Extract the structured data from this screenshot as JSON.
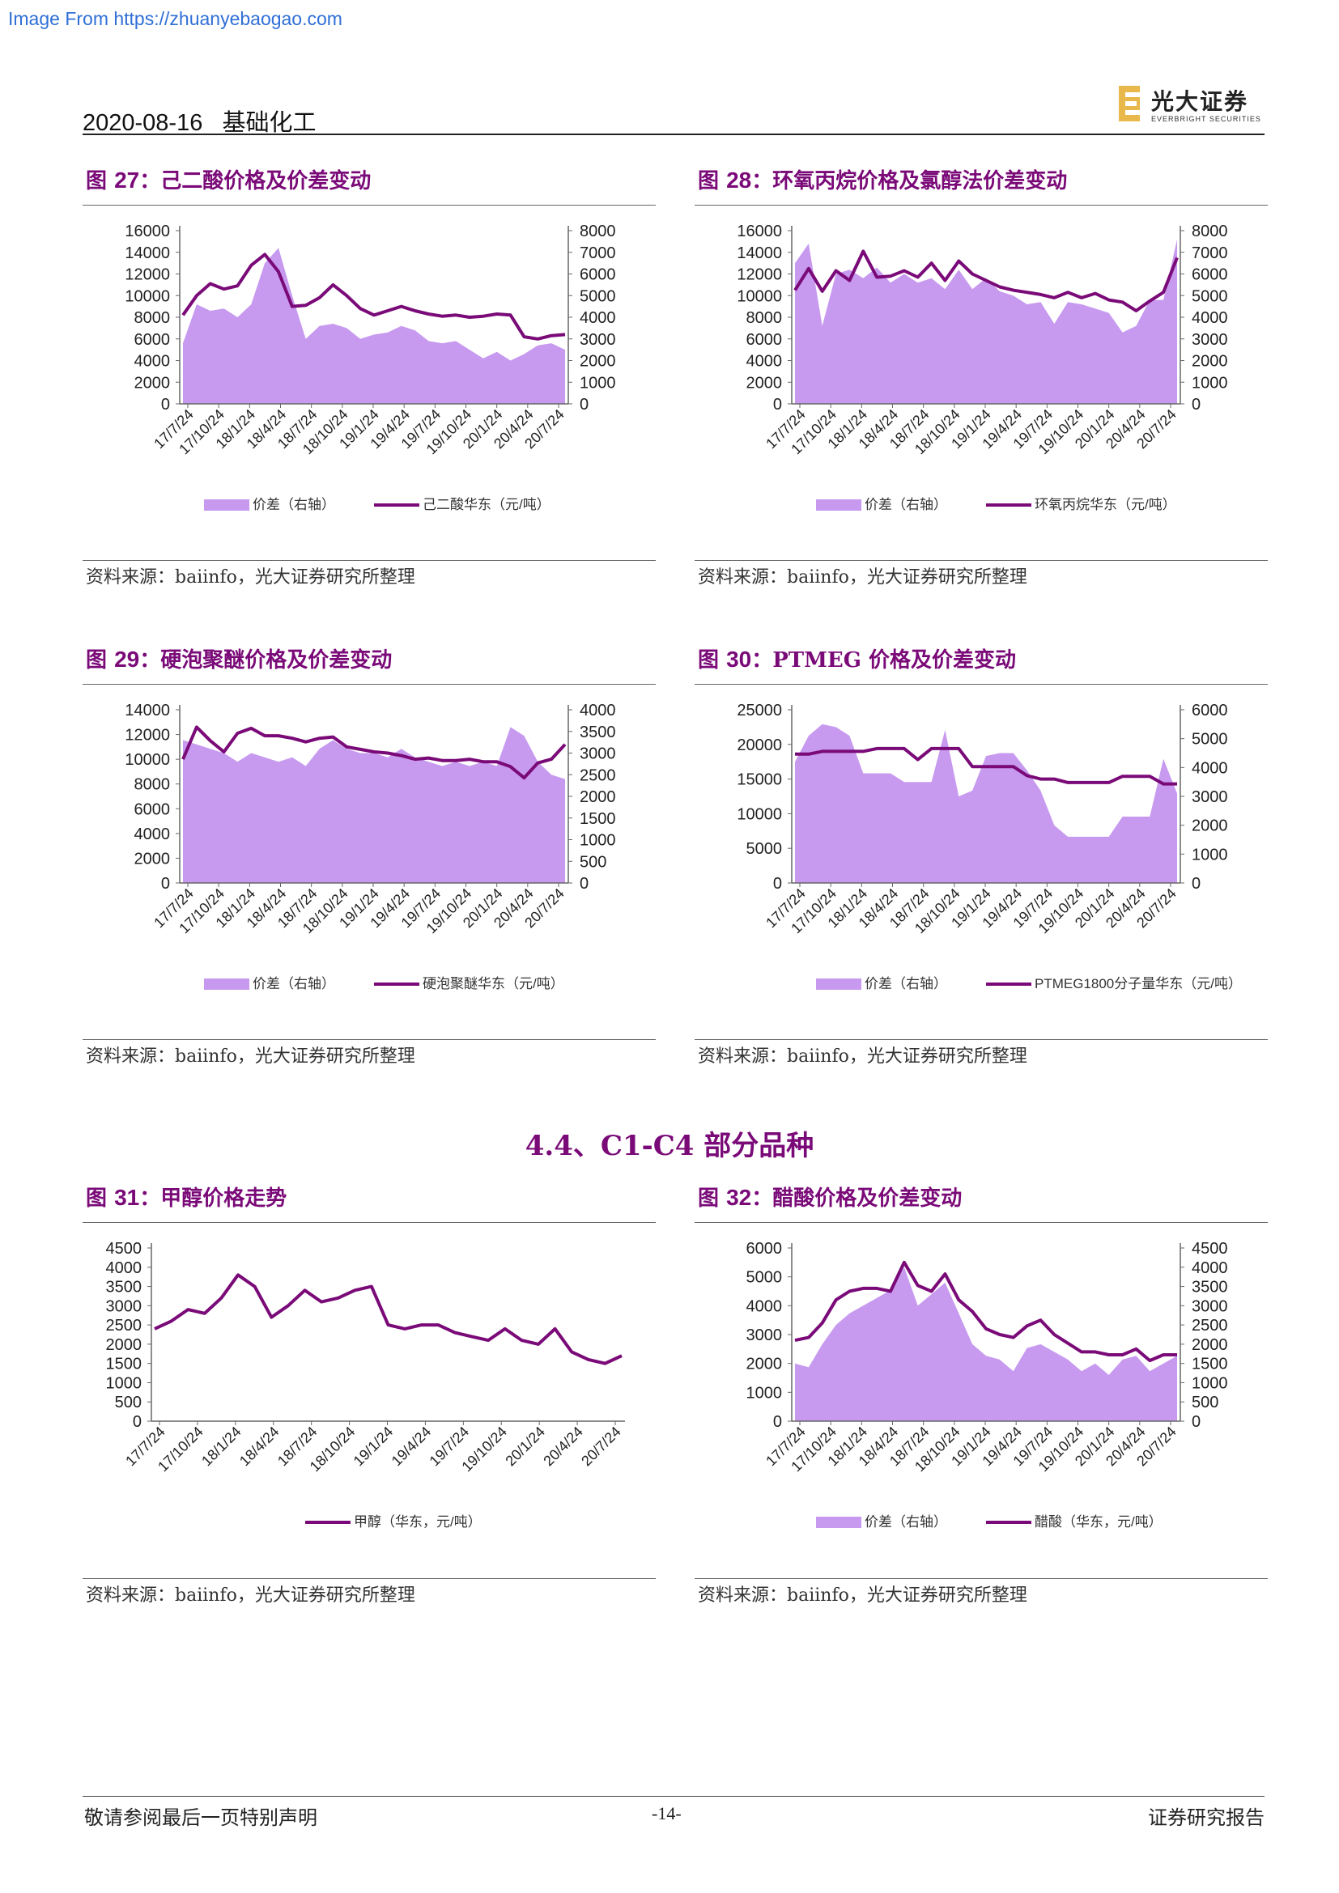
{
  "watermark": "Image From https://zhuanyebaogao.com",
  "header": {
    "date": "2020-08-16",
    "sector": "基础化工",
    "logo_cn": "光大证券",
    "logo_en": "EVERBRIGHT SECURITIES"
  },
  "section_title": "4.4、C1-C4 部分品种",
  "footer": {
    "left": "敬请参阅最后一页特别声明",
    "page": "-14-",
    "right": "证券研究报告"
  },
  "colors": {
    "accent": "#7a0a78",
    "area": "#c79af0"
  },
  "figures": [
    {
      "label": "图",
      "num": "27",
      "title": "己二酸价格及价差变动",
      "source": "资料来源：baiinfo，光大证券研究所整理"
    },
    {
      "label": "图",
      "num": "28",
      "title": "环氧丙烷价格及氯醇法价差变动",
      "source": "资料来源：baiinfo，光大证券研究所整理"
    },
    {
      "label": "图",
      "num": "29",
      "title": "硬泡聚醚价格及价差变动",
      "source": "资料来源：baiinfo，光大证券研究所整理"
    },
    {
      "label": "图",
      "num": "30",
      "title": "PTMEG 价格及价差变动",
      "source": "资料来源：baiinfo，光大证券研究所整理"
    },
    {
      "label": "图",
      "num": "31",
      "title": "甲醇价格走势",
      "source": "资料来源：baiinfo，光大证券研究所整理"
    },
    {
      "label": "图",
      "num": "32",
      "title": "醋酸价格及价差变动",
      "source": "资料来源：baiinfo，光大证券研究所整理"
    }
  ],
  "chart_data": [
    {
      "type": "area+line",
      "title": "己二酸价格及价差变动",
      "x_ticks": [
        "17/7/24",
        "17/10/24",
        "18/1/24",
        "18/4/24",
        "18/7/24",
        "18/10/24",
        "19/1/24",
        "19/4/24",
        "19/7/24",
        "19/10/24",
        "20/1/24",
        "20/4/24",
        "20/7/24"
      ],
      "y_left": {
        "min": 0,
        "max": 16000,
        "ticks": [
          0,
          2000,
          4000,
          6000,
          8000,
          10000,
          12000,
          14000,
          16000
        ]
      },
      "y_right": {
        "min": 0,
        "max": 8000,
        "ticks": [
          0,
          1000,
          2000,
          3000,
          4000,
          5000,
          6000,
          7000,
          8000
        ]
      },
      "series": [
        {
          "name": "价差（右轴）",
          "type": "area",
          "axis": "right",
          "values": [
            2800,
            4600,
            4300,
            4400,
            4000,
            4600,
            6500,
            7200,
            5000,
            3000,
            3600,
            3700,
            3500,
            3000,
            3200,
            3300,
            3600,
            3400,
            2900,
            2800,
            2900,
            2500,
            2100,
            2400,
            2000,
            2300,
            2700,
            2800,
            2500
          ]
        },
        {
          "name": "己二酸华东（元/吨）",
          "type": "line",
          "axis": "left",
          "values": [
            8200,
            10000,
            11100,
            10600,
            10900,
            12800,
            13800,
            12200,
            9000,
            9100,
            9800,
            11000,
            10000,
            8800,
            8200,
            8600,
            9000,
            8600,
            8300,
            8100,
            8200,
            8000,
            8100,
            8300,
            8200,
            6200,
            6000,
            6300,
            6400
          ]
        }
      ]
    },
    {
      "type": "area+line",
      "title": "环氧丙烷价格及氯醇法价差变动",
      "x_ticks": [
        "17/7/24",
        "17/10/24",
        "18/1/24",
        "18/4/24",
        "18/7/24",
        "18/10/24",
        "19/1/24",
        "19/4/24",
        "19/7/24",
        "19/10/24",
        "20/1/24",
        "20/4/24",
        "20/7/24"
      ],
      "y_left": {
        "min": 0,
        "max": 16000,
        "ticks": [
          0,
          2000,
          4000,
          6000,
          8000,
          10000,
          12000,
          14000,
          16000
        ]
      },
      "y_right": {
        "min": 0,
        "max": 8000,
        "ticks": [
          0,
          1000,
          2000,
          3000,
          4000,
          5000,
          6000,
          7000,
          8000
        ]
      },
      "series": [
        {
          "name": "价差（右轴）",
          "type": "area",
          "axis": "right",
          "values": [
            6500,
            7400,
            3600,
            6000,
            6200,
            5800,
            6300,
            5600,
            6000,
            5600,
            5800,
            5300,
            6200,
            5300,
            5800,
            5200,
            5000,
            4600,
            4700,
            3700,
            4700,
            4600,
            4400,
            4200,
            3300,
            3600,
            4800,
            4800,
            7600
          ]
        },
        {
          "name": "环氧丙烷华东（元/吨）",
          "type": "line",
          "axis": "left",
          "values": [
            10500,
            12500,
            10400,
            12300,
            11400,
            14100,
            11700,
            11800,
            12300,
            11700,
            13000,
            11400,
            13200,
            12000,
            11400,
            10800,
            10500,
            10300,
            10100,
            9800,
            10300,
            9800,
            10200,
            9600,
            9400,
            8600,
            9500,
            10300,
            13500
          ]
        }
      ]
    },
    {
      "type": "area+line",
      "title": "硬泡聚醚价格及价差变动",
      "x_ticks": [
        "17/7/24",
        "17/10/24",
        "18/1/24",
        "18/4/24",
        "18/7/24",
        "18/10/24",
        "19/1/24",
        "19/4/24",
        "19/7/24",
        "19/10/24",
        "20/1/24",
        "20/4/24",
        "20/7/24"
      ],
      "y_left": {
        "min": 0,
        "max": 14000,
        "ticks": [
          0,
          2000,
          4000,
          6000,
          8000,
          10000,
          12000,
          14000
        ]
      },
      "y_right": {
        "min": 0,
        "max": 4000,
        "ticks": [
          0,
          500,
          1000,
          1500,
          2000,
          2500,
          3000,
          3500,
          4000
        ]
      },
      "series": [
        {
          "name": "价差（右轴）",
          "type": "area",
          "axis": "right",
          "values": [
            3300,
            3200,
            3100,
            3000,
            2800,
            3000,
            2900,
            2800,
            2900,
            2700,
            3100,
            3300,
            3100,
            3000,
            3000,
            2900,
            3100,
            2900,
            2800,
            2700,
            2800,
            2700,
            2800,
            2700,
            3600,
            3400,
            2800,
            2500,
            2400
          ]
        },
        {
          "name": "硬泡聚醚华东（元/吨）",
          "type": "line",
          "axis": "left",
          "values": [
            10000,
            12600,
            11500,
            10600,
            12100,
            12500,
            11900,
            11900,
            11700,
            11400,
            11700,
            11800,
            11000,
            10800,
            10600,
            10500,
            10300,
            10000,
            10100,
            9900,
            9900,
            10000,
            9800,
            9800,
            9400,
            8500,
            9700,
            10000,
            11200
          ]
        }
      ]
    },
    {
      "type": "area+line",
      "title": "PTMEG 价格及价差变动",
      "x_ticks": [
        "17/7/24",
        "17/10/24",
        "18/1/24",
        "18/4/24",
        "18/7/24",
        "18/10/24",
        "19/1/24",
        "19/4/24",
        "19/7/24",
        "19/10/24",
        "20/1/24",
        "20/4/24",
        "20/7/24"
      ],
      "y_left": {
        "min": 0,
        "max": 25000,
        "ticks": [
          0,
          5000,
          10000,
          15000,
          20000,
          25000
        ]
      },
      "y_right": {
        "min": 0,
        "max": 6000,
        "ticks": [
          0,
          1000,
          2000,
          3000,
          4000,
          5000,
          6000
        ]
      },
      "series": [
        {
          "name": "价差（右轴）",
          "type": "area",
          "axis": "right",
          "values": [
            4200,
            5100,
            5500,
            5400,
            5100,
            3800,
            3800,
            3800,
            3500,
            3500,
            3500,
            5300,
            3000,
            3200,
            4400,
            4500,
            4500,
            3900,
            3200,
            2000,
            1600,
            1600,
            1600,
            1600,
            2300,
            2300,
            2300,
            4300,
            3100
          ]
        },
        {
          "name": "PTMEG1800分子量华东（元/吨）",
          "type": "line",
          "axis": "left",
          "values": [
            18600,
            18600,
            19000,
            19000,
            19000,
            19000,
            19400,
            19400,
            19400,
            17800,
            19400,
            19400,
            19400,
            16800,
            16800,
            16800,
            16800,
            15500,
            15000,
            15000,
            14500,
            14500,
            14500,
            14500,
            15400,
            15400,
            15400,
            14300,
            14300
          ]
        }
      ]
    },
    {
      "type": "line",
      "title": "甲醇价格走势",
      "x_ticks": [
        "17/7/24",
        "17/10/24",
        "18/1/24",
        "18/4/24",
        "18/7/24",
        "18/10/24",
        "19/1/24",
        "19/4/24",
        "19/7/24",
        "19/10/24",
        "20/1/24",
        "20/4/24",
        "20/7/24"
      ],
      "y_left": {
        "min": 0,
        "max": 4500,
        "ticks": [
          0,
          500,
          1000,
          1500,
          2000,
          2500,
          3000,
          3500,
          4000,
          4500
        ]
      },
      "series": [
        {
          "name": "甲醇（华东，元/吨）",
          "type": "line",
          "axis": "left",
          "values": [
            2400,
            2600,
            2900,
            2800,
            3200,
            3800,
            3500,
            2700,
            3000,
            3400,
            3100,
            3200,
            3400,
            3500,
            2500,
            2400,
            2500,
            2500,
            2300,
            2200,
            2100,
            2400,
            2100,
            2000,
            2400,
            1800,
            1600,
            1500,
            1700
          ]
        }
      ]
    },
    {
      "type": "area+line",
      "title": "醋酸价格及价差变动",
      "x_ticks": [
        "17/7/24",
        "17/10/24",
        "18/1/24",
        "18/4/24",
        "18/7/24",
        "18/10/24",
        "19/1/24",
        "19/4/24",
        "19/7/24",
        "19/10/24",
        "20/1/24",
        "20/4/24",
        "20/7/24"
      ],
      "y_left": {
        "min": 0,
        "max": 6000,
        "ticks": [
          0,
          1000,
          2000,
          3000,
          4000,
          5000,
          6000
        ]
      },
      "y_right": {
        "min": 0,
        "max": 4500,
        "ticks": [
          0,
          500,
          1000,
          1500,
          2000,
          2500,
          3000,
          3500,
          4000,
          4500
        ]
      },
      "series": [
        {
          "name": "价差（右轴）",
          "type": "area",
          "axis": "right",
          "values": [
            1500,
            1400,
            2000,
            2500,
            2800,
            3000,
            3200,
            3400,
            4000,
            3000,
            3300,
            3600,
            2800,
            2000,
            1700,
            1600,
            1300,
            1900,
            2000,
            1800,
            1600,
            1300,
            1500,
            1200,
            1600,
            1700,
            1300,
            1500,
            1700
          ]
        },
        {
          "name": "醋酸（华东，元/吨）",
          "type": "line",
          "axis": "left",
          "values": [
            2800,
            2900,
            3400,
            4200,
            4500,
            4600,
            4600,
            4500,
            5500,
            4700,
            4500,
            5100,
            4200,
            3800,
            3200,
            3000,
            2900,
            3300,
            3500,
            3000,
            2700,
            2400,
            2400,
            2300,
            2300,
            2500,
            2100,
            2300,
            2300
          ]
        }
      ]
    }
  ]
}
